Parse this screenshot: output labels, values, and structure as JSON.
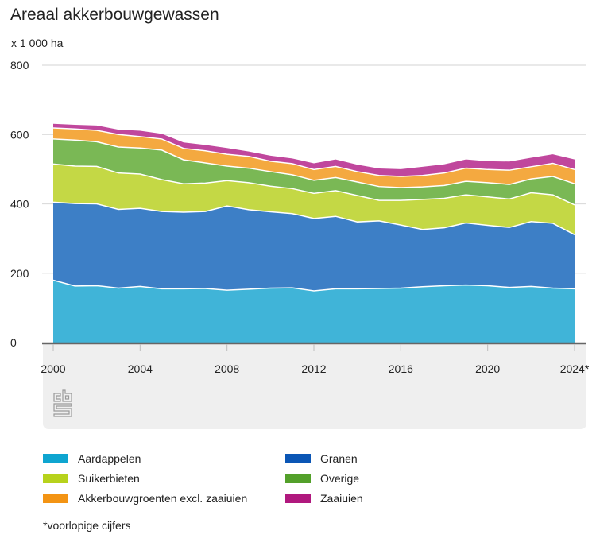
{
  "title": "Areaal akkerbouwgewassen",
  "unit_label": "x 1 000 ha",
  "footnote": "*voorlopige cijfers",
  "logo": "cbs-logo",
  "chart_data": {
    "type": "area",
    "stacked": true,
    "title": "Areaal akkerbouwgewassen",
    "ylabel": "x 1 000 ha",
    "xlabel": "",
    "ylim": [
      0,
      800
    ],
    "yticks": [
      0,
      200,
      400,
      600,
      800
    ],
    "xlim": [
      2000,
      2024
    ],
    "xticks": [
      2000,
      2004,
      2008,
      2012,
      2016,
      2020,
      2024
    ],
    "xtick_labels": [
      "2000",
      "2004",
      "2008",
      "2012",
      "2016",
      "2020",
      "2024*"
    ],
    "grid": "horizontal",
    "legend_position": "bottom",
    "x": [
      2000,
      2001,
      2002,
      2003,
      2004,
      2005,
      2006,
      2007,
      2008,
      2009,
      2010,
      2011,
      2012,
      2013,
      2014,
      2015,
      2016,
      2017,
      2018,
      2019,
      2020,
      2021,
      2022,
      2023,
      2024
    ],
    "series": [
      {
        "name": "Aardappelen",
        "color": "#40b4d8",
        "values": [
          180,
          163,
          164,
          157,
          162,
          155,
          155,
          156,
          151,
          154,
          157,
          158,
          149,
          155,
          155,
          156,
          157,
          161,
          164,
          166,
          164,
          159,
          162,
          157,
          155
        ]
      },
      {
        "name": "Granen",
        "color": "#3d7fc6",
        "values": [
          225,
          238,
          236,
          227,
          225,
          223,
          221,
          222,
          243,
          229,
          220,
          214,
          209,
          209,
          193,
          195,
          182,
          165,
          167,
          179,
          174,
          173,
          187,
          187,
          156
        ]
      },
      {
        "name": "Suikerbieten",
        "color": "#c4d845",
        "values": [
          110,
          108,
          108,
          105,
          99,
          92,
          82,
          82,
          73,
          78,
          74,
          72,
          72,
          74,
          76,
          59,
          71,
          87,
          85,
          81,
          82,
          82,
          83,
          82,
          86
        ]
      },
      {
        "name": "Overige",
        "color": "#7ab855",
        "values": [
          72,
          75,
          71,
          75,
          75,
          85,
          69,
          58,
          42,
          42,
          42,
          40,
          38,
          38,
          39,
          40,
          37,
          36,
          37,
          39,
          41,
          42,
          40,
          53,
          61
        ]
      },
      {
        "name": "Akkerbouwgroenten excl. zaaiuien",
        "color": "#f4a940",
        "values": [
          32,
          32,
          33,
          36,
          33,
          32,
          33,
          35,
          34,
          34,
          30,
          32,
          31,
          32,
          30,
          32,
          32,
          33,
          36,
          38,
          38,
          41,
          35,
          38,
          41
        ]
      },
      {
        "name": "Zaaiuien",
        "color": "#c0479d",
        "values": [
          12,
          12,
          14,
          14,
          17,
          15,
          17,
          17,
          18,
          14,
          16,
          15,
          18,
          20,
          20,
          20,
          21,
          25,
          25,
          25,
          24,
          25,
          26,
          26,
          29
        ]
      }
    ]
  },
  "legend": [
    {
      "label": "Aardappelen",
      "color": "#0ea5d0"
    },
    {
      "label": "Granen",
      "color": "#0b56b5"
    },
    {
      "label": "Suikerbieten",
      "color": "#b7d21c"
    },
    {
      "label": "Overige",
      "color": "#53a02a"
    },
    {
      "label": "Akkerbouwgroenten excl. zaaiuien",
      "color": "#f39414"
    },
    {
      "label": "Zaaiuien",
      "color": "#b0187e"
    }
  ]
}
